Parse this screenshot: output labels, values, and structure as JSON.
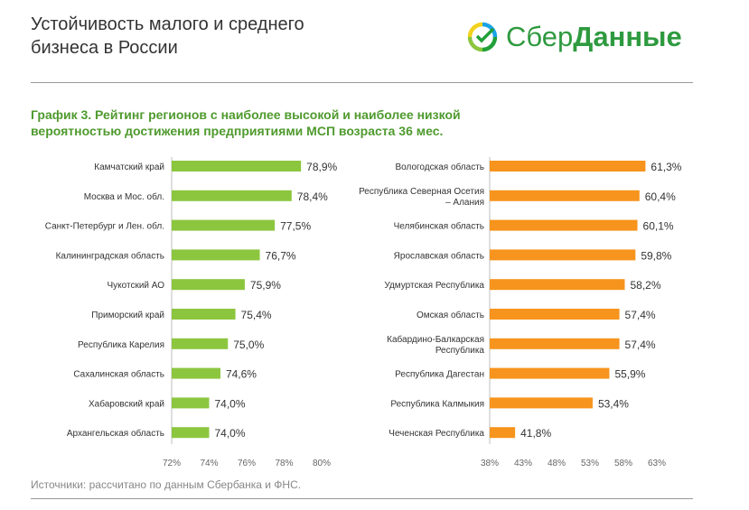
{
  "header": {
    "title": "Устойчивость малого и среднего бизнеса в России",
    "logo_part1": "Сбер",
    "logo_part2": "Данные"
  },
  "subtitle": "График 3. Рейтинг регионов с наиболее высокой и наиболее низкой вероятностью достижения предприятиями МСП возраста 36 мес.",
  "source": "Источники: рассчитано по данным Сбербанка и ФНС.",
  "colors": {
    "green_bar": "#8cc63f",
    "orange_bar": "#f7941d",
    "subtitle": "#4f9a2e",
    "logo": "#2e9a3f"
  },
  "chart_data": [
    {
      "type": "bar",
      "orientation": "horizontal",
      "color": "#8cc63f",
      "categories": [
        "Камчатский край",
        "Москва и Мос. обл.",
        "Санкт-Петербург и Лен. обл.",
        "Калининградская область",
        "Чукотский АО",
        "Приморский край",
        "Республика Карелия",
        "Сахалинская область",
        "Хабаровский край",
        "Архангельская область"
      ],
      "values": [
        78.9,
        78.4,
        77.5,
        76.7,
        75.9,
        75.4,
        75.0,
        74.6,
        74.0,
        74.0
      ],
      "value_labels": [
        "78,9%",
        "78,4%",
        "77,5%",
        "76,7%",
        "75,9%",
        "75,4%",
        "75,0%",
        "74,6%",
        "74,0%",
        "74,0%"
      ],
      "xlim": [
        72,
        80
      ],
      "ticks": [
        72,
        74,
        76,
        78,
        80
      ],
      "tick_labels": [
        "72%",
        "74%",
        "76%",
        "78%",
        "80%"
      ]
    },
    {
      "type": "bar",
      "orientation": "horizontal",
      "color": "#f7941d",
      "categories": [
        "Вологодская область",
        "Республика Северная Осетия – Алания",
        "Челябинская область",
        "Ярославская область",
        "Удмуртская Республика",
        "Омская область",
        "Кабардино-Балкарская Республика",
        "Республика Дагестан",
        "Республика Калмыкия",
        "Чеченская Республика"
      ],
      "values": [
        61.3,
        60.4,
        60.1,
        59.8,
        58.2,
        57.4,
        57.4,
        55.9,
        53.4,
        41.8
      ],
      "value_labels": [
        "61,3%",
        "60,4%",
        "60,1%",
        "59,8%",
        "58,2%",
        "57,4%",
        "57,4%",
        "55,9%",
        "53,4%",
        "41,8%"
      ],
      "xlim": [
        38,
        63
      ],
      "ticks": [
        38,
        43,
        48,
        53,
        58,
        63
      ],
      "tick_labels": [
        "38%",
        "43%",
        "48%",
        "53%",
        "58%",
        "63%"
      ]
    }
  ]
}
